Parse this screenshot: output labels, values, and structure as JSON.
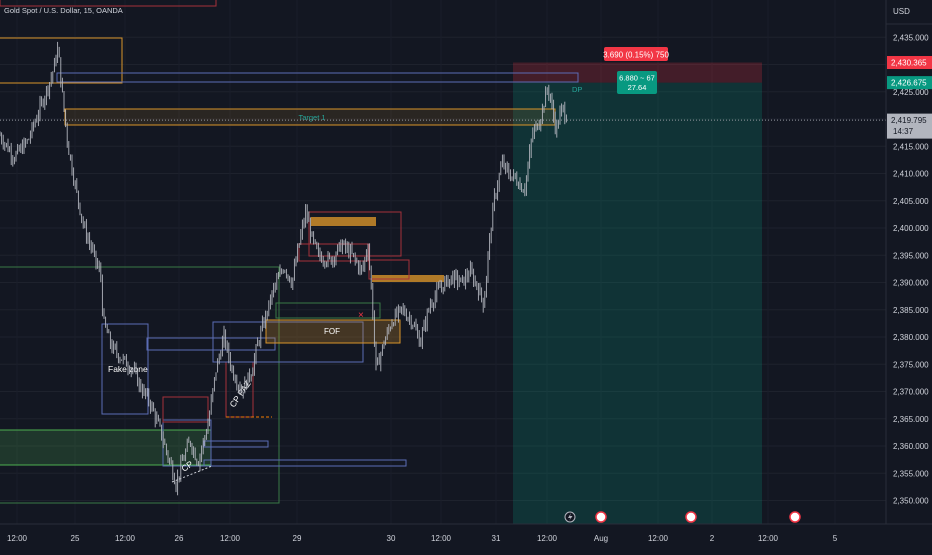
{
  "header": {
    "symbol_title": "Gold Spot / U.S. Dollar, 15, OANDA",
    "currency": "USD"
  },
  "chart_data": {
    "type": "candlestick",
    "symbol": "Gold Spot / U.S. Dollar",
    "interval": "15",
    "source": "OANDA",
    "price_axis": {
      "ticks": [
        2350,
        2355,
        2360,
        2365,
        2370,
        2375,
        2380,
        2385,
        2390,
        2395,
        2400,
        2405,
        2410,
        2415,
        2420,
        2425,
        2430,
        2435
      ],
      "tick_labels": [
        "2,350.000",
        "2,355.000",
        "2,360.000",
        "2,365.000",
        "2,370.000",
        "2,375.000",
        "2,380.000",
        "2,385.000",
        "2,390.000",
        "2,395.000",
        "2,400.000",
        "2,405.000",
        "2,410.000",
        "2,415.000",
        "2,420.000",
        "2,425.000",
        "2,430.000",
        "2,435.000"
      ],
      "range": [
        2346,
        2438
      ]
    },
    "time_axis": {
      "labels": [
        "12:00",
        "25",
        "12:00",
        "26",
        "12:00",
        "29",
        "30",
        "12:00",
        "31",
        "12:00",
        "Aug",
        "12:00",
        "2",
        "12:00",
        "5"
      ]
    },
    "current_price": {
      "label": "2,419.795",
      "countdown": "14:37",
      "value": 2419.795
    },
    "stop_price": {
      "label": "2,430.365",
      "value": 2430.365
    },
    "target_price": {
      "label": "2,426.675",
      "value": 2426.675
    },
    "position": {
      "side": "short",
      "risk_label": "3.690 (0.15%) 750",
      "reward_label_1": "6.880 ~ 67",
      "reward_label_2": "27.64",
      "entry": 2426.675,
      "stop": 2430.365,
      "profit_bottom": 2346
    },
    "annotations": {
      "target_1": "Target 1",
      "dp": "DP",
      "fake_zone": "Fake zone",
      "cp": "CP",
      "cp_paz": "CP PAZ",
      "fof": "FOF",
      "x_mark": "×"
    },
    "price_path": [
      [
        0,
        2417
      ],
      [
        14,
        2413
      ],
      [
        28,
        2416
      ],
      [
        40,
        2422
      ],
      [
        52,
        2428
      ],
      [
        58,
        2433
      ],
      [
        62,
        2425
      ],
      [
        68,
        2415
      ],
      [
        76,
        2407
      ],
      [
        84,
        2400
      ],
      [
        92,
        2396
      ],
      [
        101,
        2391
      ],
      [
        103,
        2383
      ],
      [
        112,
        2378
      ],
      [
        122,
        2376
      ],
      [
        133,
        2374
      ],
      [
        140,
        2371
      ],
      [
        150,
        2368
      ],
      [
        160,
        2363
      ],
      [
        168,
        2358
      ],
      [
        172,
        2356
      ],
      [
        176,
        2353
      ],
      [
        182,
        2357
      ],
      [
        190,
        2361
      ],
      [
        198,
        2357
      ],
      [
        208,
        2364
      ],
      [
        216,
        2374
      ],
      [
        224,
        2380
      ],
      [
        232,
        2374
      ],
      [
        242,
        2370
      ],
      [
        252,
        2374
      ],
      [
        258,
        2379
      ],
      [
        266,
        2384
      ],
      [
        274,
        2389
      ],
      [
        284,
        2393
      ],
      [
        292,
        2390
      ],
      [
        300,
        2398
      ],
      [
        306,
        2403
      ],
      [
        312,
        2398
      ],
      [
        318,
        2395
      ],
      [
        330,
        2394
      ],
      [
        342,
        2397
      ],
      [
        352,
        2395
      ],
      [
        362,
        2392
      ],
      [
        368,
        2397
      ],
      [
        372,
        2387
      ],
      [
        376,
        2374
      ],
      [
        384,
        2379
      ],
      [
        392,
        2383
      ],
      [
        402,
        2385
      ],
      [
        412,
        2383
      ],
      [
        420,
        2379
      ],
      [
        430,
        2386
      ],
      [
        440,
        2389
      ],
      [
        452,
        2391
      ],
      [
        462,
        2390
      ],
      [
        470,
        2392
      ],
      [
        478,
        2389
      ],
      [
        484,
        2386
      ],
      [
        488,
        2395
      ],
      [
        494,
        2405
      ],
      [
        502,
        2412
      ],
      [
        508,
        2410
      ],
      [
        516,
        2409
      ],
      [
        524,
        2407
      ],
      [
        528,
        2411
      ],
      [
        532,
        2417
      ],
      [
        540,
        2420
      ],
      [
        548,
        2426
      ],
      [
        556,
        2418
      ],
      [
        562,
        2422
      ],
      [
        568,
        2420
      ]
    ]
  }
}
